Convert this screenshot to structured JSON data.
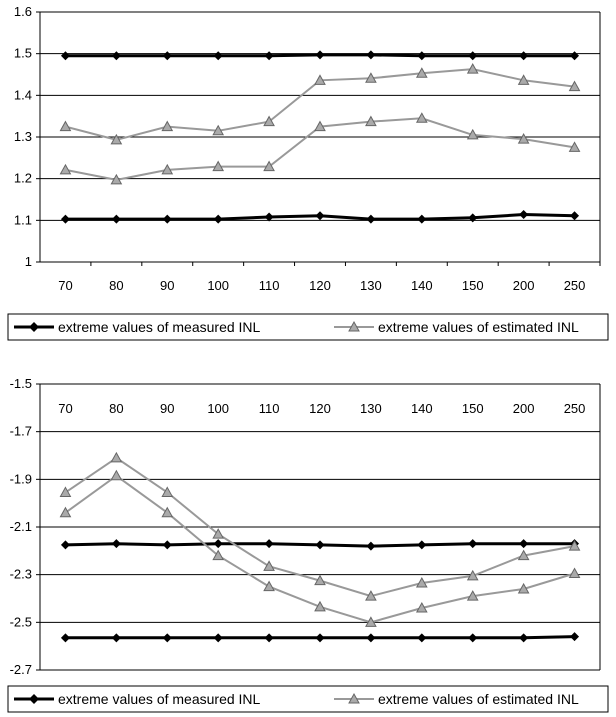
{
  "chart_data": [
    {
      "type": "line",
      "categories": [
        "70",
        "80",
        "90",
        "100",
        "110",
        "120",
        "130",
        "140",
        "150",
        "200",
        "250"
      ],
      "ylim": [
        1,
        1.6
      ],
      "yticks": [
        "1",
        "1.1",
        "1.2",
        "1.3",
        "1.4",
        "1.5",
        "1.6"
      ],
      "grid": true,
      "legend_position": "bottom",
      "series": [
        {
          "name": "extreme values of measured INL",
          "color": "#000000",
          "marker": "diamond",
          "values": [
            1.495,
            1.495,
            1.495,
            1.495,
            1.495,
            1.497,
            1.497,
            1.495,
            1.495,
            1.495,
            1.495
          ]
        },
        {
          "name": "extreme values of measured INL",
          "color": "#000000",
          "marker": "diamond",
          "values": [
            1.103,
            1.103,
            1.103,
            1.103,
            1.108,
            1.111,
            1.103,
            1.103,
            1.106,
            1.114,
            1.111
          ]
        },
        {
          "name": "extreme values of estimated INL",
          "color": "#999999",
          "marker": "triangle",
          "values": [
            1.325,
            1.293,
            1.325,
            1.315,
            1.337,
            1.436,
            1.441,
            1.453,
            1.463,
            1.436,
            1.421
          ]
        },
        {
          "name": "extreme values of estimated INL",
          "color": "#999999",
          "marker": "triangle",
          "values": [
            1.221,
            1.197,
            1.221,
            1.229,
            1.229,
            1.325,
            1.337,
            1.345,
            1.305,
            1.295,
            1.275
          ]
        }
      ]
    },
    {
      "type": "line",
      "categories": [
        "70",
        "80",
        "90",
        "100",
        "110",
        "120",
        "130",
        "140",
        "150",
        "200",
        "250"
      ],
      "ylim": [
        -2.7,
        -1.5
      ],
      "yticks": [
        "-2.7",
        "-2.5",
        "-2.3",
        "-2.1",
        "-1.9",
        "-1.7",
        "-1.5"
      ],
      "grid": true,
      "legend_position": "bottom",
      "series": [
        {
          "name": "extreme values of measured INL",
          "color": "#000000",
          "marker": "diamond",
          "values": [
            -2.175,
            -2.17,
            -2.175,
            -2.17,
            -2.17,
            -2.175,
            -2.18,
            -2.175,
            -2.17,
            -2.17,
            -2.17
          ]
        },
        {
          "name": "extreme values of measured INL",
          "color": "#000000",
          "marker": "diamond",
          "values": [
            -2.565,
            -2.565,
            -2.565,
            -2.565,
            -2.565,
            -2.565,
            -2.565,
            -2.565,
            -2.565,
            -2.565,
            -2.56
          ]
        },
        {
          "name": "extreme values of estimated INL",
          "color": "#999999",
          "marker": "triangle",
          "values": [
            -1.955,
            -1.81,
            -1.955,
            -2.13,
            -2.265,
            -2.325,
            -2.39,
            -2.335,
            -2.305,
            -2.22,
            -2.18
          ]
        },
        {
          "name": "extreme values of estimated INL",
          "color": "#999999",
          "marker": "triangle",
          "values": [
            -2.04,
            -1.885,
            -2.04,
            -2.22,
            -2.35,
            -2.435,
            -2.5,
            -2.44,
            -2.39,
            -2.36,
            -2.295
          ]
        }
      ]
    }
  ],
  "legends": [
    {
      "measured_label": "extreme values of measured INL",
      "estimated_label": "extreme values of estimated INL"
    },
    {
      "measured_label": "extreme values of measured INL",
      "estimated_label": "extreme values of estimated INL"
    }
  ]
}
